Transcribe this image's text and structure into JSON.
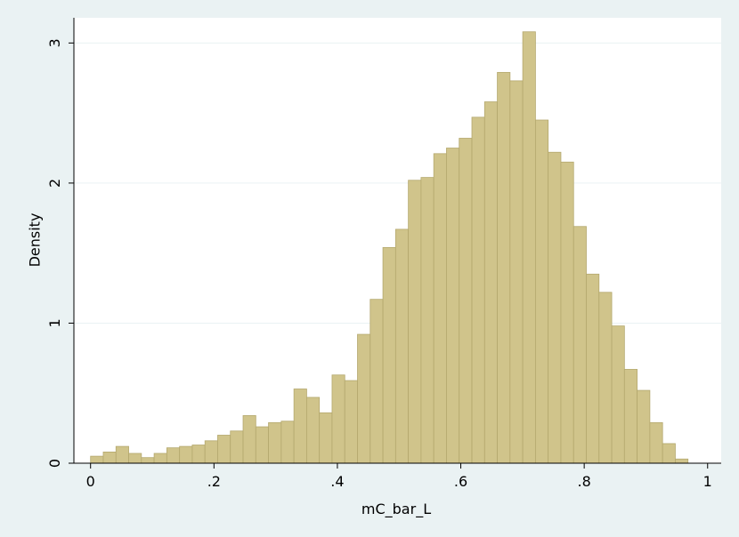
{
  "chart_data": {
    "type": "histogram",
    "x_label": "mC_bar_L",
    "y_label": "Density",
    "bins": [
      0,
      0.0206,
      0.0412,
      0.0618,
      0.0824,
      0.103,
      0.1236,
      0.1442,
      0.1648,
      0.1854,
      0.206,
      0.2266,
      0.2472,
      0.2678,
      0.2884,
      0.309,
      0.3296,
      0.3502,
      0.3708,
      0.3914,
      0.412,
      0.4326,
      0.4532,
      0.4738,
      0.4944,
      0.515,
      0.5356,
      0.5562,
      0.5768,
      0.5974,
      0.618,
      0.6386,
      0.6592,
      0.6798,
      0.7004,
      0.721,
      0.7416,
      0.7622,
      0.7828,
      0.8034,
      0.824,
      0.8446,
      0.8652,
      0.8858,
      0.9064,
      0.927,
      0.9476,
      0.9682
    ],
    "values": [
      0.05,
      0.08,
      0.12,
      0.07,
      0.04,
      0.07,
      0.11,
      0.12,
      0.13,
      0.16,
      0.2,
      0.23,
      0.34,
      0.26,
      0.29,
      0.3,
      0.53,
      0.47,
      0.36,
      0.63,
      0.59,
      0.92,
      1.17,
      1.54,
      1.67,
      2.02,
      2.04,
      2.21,
      2.25,
      2.32,
      2.47,
      2.58,
      2.79,
      2.73,
      3.08,
      2.45,
      2.22,
      2.15,
      1.69,
      1.35,
      1.22,
      0.98,
      0.67,
      0.52,
      0.29,
      0.14,
      0.03
    ],
    "color": "#d0c48b",
    "xlim": [
      -0.027,
      1.022
    ],
    "ylim": [
      0,
      3.18
    ],
    "xticks": [
      0,
      {
        "value": 0.2,
        "label": ".2"
      },
      {
        "value": 0.4,
        "label": ".4"
      },
      {
        "value": 0.6,
        "label": ".6"
      },
      {
        "value": 0.8,
        "label": ".8"
      },
      1
    ],
    "yticks": [
      0,
      1,
      2,
      3
    ],
    "grid": true
  }
}
